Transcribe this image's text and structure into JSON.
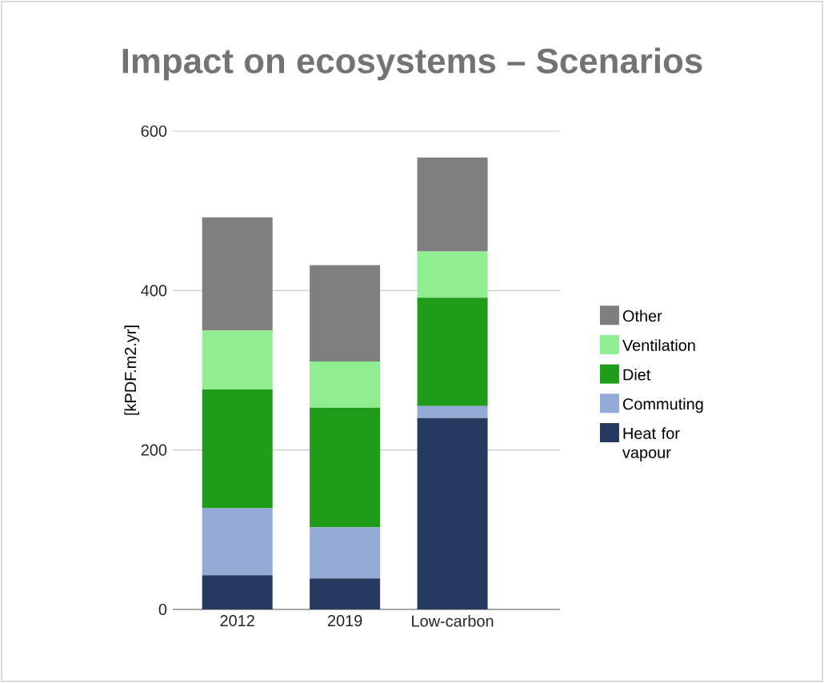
{
  "chart_data": {
    "type": "bar",
    "title": "Impact on ecosystems – Scenarios",
    "ylabel": "[kPDF.m2.yr]",
    "categories": [
      "2012",
      "2019",
      "Low-carbon"
    ],
    "stacked": true,
    "series": [
      {
        "name": "Heat for vapour",
        "color": "#263a60",
        "values": [
          43,
          39,
          240
        ]
      },
      {
        "name": "Commuting",
        "color": "#94aad6",
        "values": [
          84,
          64,
          15
        ]
      },
      {
        "name": "Diet",
        "color": "#1e9c1a",
        "values": [
          149,
          150,
          136
        ]
      },
      {
        "name": "Ventilation",
        "color": "#90ee90",
        "values": [
          74,
          58,
          58
        ]
      },
      {
        "name": "Other",
        "color": "#7f7f7f",
        "values": [
          142,
          121,
          118
        ]
      }
    ],
    "ylim": [
      0,
      600
    ],
    "yticks": [
      0,
      200,
      400,
      600
    ],
    "grid": "y",
    "legend": "right"
  }
}
